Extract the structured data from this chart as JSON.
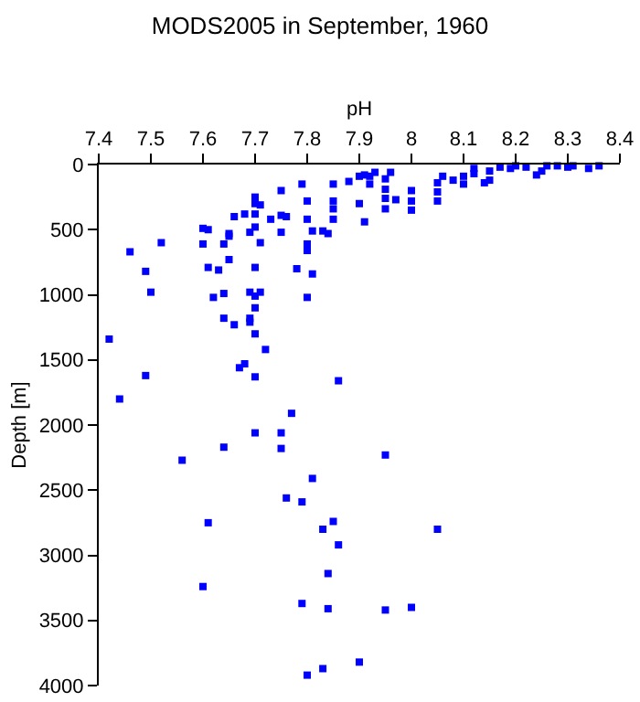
{
  "chart_data": {
    "type": "scatter",
    "title": "MODS2005 in September, 1960",
    "xlabel": "pH",
    "ylabel": "Depth [m]",
    "xlim": [
      7.4,
      8.4
    ],
    "xticks": [
      7.4,
      7.5,
      7.6,
      7.7,
      7.8,
      7.9,
      8,
      8.1,
      8.2,
      8.3,
      8.4
    ],
    "ylim": [
      4000,
      0
    ],
    "yticks": [
      0,
      500,
      1000,
      1500,
      2000,
      2500,
      3000,
      3500,
      4000
    ],
    "grid": false,
    "legend": false,
    "marker": "square",
    "series": [
      {
        "color": "#0000ff",
        "x": [
          8.36,
          8.34,
          8.31,
          8.3,
          8.28,
          8.26,
          8.25,
          8.24,
          8.22,
          8.2,
          8.19,
          8.17,
          8.15,
          8.15,
          8.14,
          8.12,
          8.12,
          8.1,
          8.1,
          8.08,
          8.06,
          8.05,
          8.05,
          8.05,
          8.0,
          8.0,
          8.0,
          7.97,
          7.96,
          7.95,
          7.95,
          7.95,
          7.95,
          7.93,
          7.92,
          7.91,
          7.9,
          7.88,
          7.92,
          7.9,
          7.91,
          7.85,
          7.85,
          7.85,
          7.85,
          7.79,
          7.8,
          7.8,
          7.81,
          7.83,
          7.84,
          7.75,
          7.75,
          7.75,
          7.76,
          7.73,
          7.7,
          7.7,
          7.71,
          7.7,
          7.7,
          7.69,
          7.68,
          7.66,
          7.65,
          7.65,
          7.6,
          7.61,
          7.6,
          7.64,
          7.71,
          7.8,
          7.8,
          7.65,
          7.46,
          7.52,
          7.49,
          7.61,
          7.63,
          7.7,
          7.78,
          7.81,
          7.5,
          7.62,
          7.64,
          7.69,
          7.7,
          7.71,
          7.8,
          7.64,
          7.66,
          7.69,
          7.69,
          7.7,
          7.42,
          7.7,
          7.72,
          7.67,
          7.68,
          7.49,
          7.7,
          7.86,
          7.44,
          7.77,
          7.7,
          7.75,
          7.64,
          7.75,
          7.56,
          7.95,
          7.81,
          7.76,
          7.79,
          7.61,
          7.85,
          7.83,
          8.05,
          7.86,
          7.84,
          7.6,
          7.79,
          7.84,
          7.95,
          8.0,
          7.9,
          7.83,
          7.8
        ],
        "values": [
          10,
          30,
          10,
          20,
          10,
          10,
          50,
          80,
          20,
          10,
          30,
          20,
          50,
          120,
          140,
          30,
          70,
          90,
          150,
          120,
          90,
          140,
          210,
          280,
          200,
          280,
          350,
          270,
          60,
          110,
          190,
          260,
          340,
          60,
          90,
          80,
          90,
          130,
          150,
          300,
          440,
          150,
          280,
          340,
          420,
          150,
          280,
          420,
          510,
          510,
          530,
          200,
          390,
          520,
          400,
          420,
          250,
          300,
          310,
          380,
          480,
          520,
          380,
          400,
          530,
          550,
          490,
          500,
          610,
          610,
          600,
          610,
          660,
          730,
          670,
          600,
          820,
          790,
          810,
          790,
          800,
          840,
          980,
          1020,
          990,
          980,
          1010,
          980,
          1020,
          1180,
          1230,
          1180,
          1210,
          1100,
          1340,
          1300,
          1420,
          1560,
          1530,
          1620,
          1630,
          1660,
          1800,
          1910,
          2060,
          2060,
          2170,
          2180,
          2270,
          2230,
          2410,
          2560,
          2590,
          2750,
          2740,
          2800,
          2800,
          2920,
          3140,
          3240,
          3370,
          3410,
          3420,
          3400,
          3820,
          3870,
          3920
        ]
      }
    ]
  }
}
